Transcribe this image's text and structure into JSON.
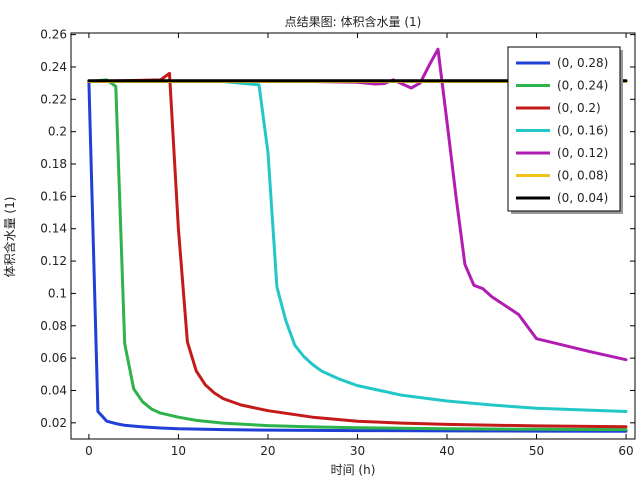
{
  "chart_data": {
    "type": "line",
    "title": "点结果图: 体积含水量 (1)",
    "xlabel": "时间 (h)",
    "ylabel": "体积含水量 (1)",
    "xlim": [
      -2,
      61
    ],
    "ylim": [
      0.01,
      0.261
    ],
    "xticks": [
      0,
      10,
      20,
      30,
      40,
      50,
      60
    ],
    "yticks": [
      0.02,
      0.04,
      0.06,
      0.08,
      0.1,
      0.12,
      0.14,
      0.16,
      0.18,
      0.2,
      0.22,
      0.24,
      0.26
    ],
    "ytick_labels": [
      "0.02",
      "0.04",
      "0.06",
      "0.08",
      "0.1",
      "0.12",
      "0.14",
      "0.16",
      "0.18",
      "0.2",
      "0.22",
      "0.24",
      "0.26"
    ],
    "grid": false,
    "legend_position": "top-right",
    "series": [
      {
        "name": "(0, 0.28)",
        "color": "#1f3fd6",
        "points": [
          [
            0,
            0.231
          ],
          [
            1,
            0.027
          ],
          [
            2,
            0.021
          ],
          [
            3,
            0.0195
          ],
          [
            4,
            0.0185
          ],
          [
            6,
            0.0175
          ],
          [
            8,
            0.0168
          ],
          [
            10,
            0.0163
          ],
          [
            15,
            0.0158
          ],
          [
            20,
            0.0155
          ],
          [
            30,
            0.0152
          ],
          [
            40,
            0.015
          ],
          [
            50,
            0.0149
          ],
          [
            60,
            0.0148
          ]
        ]
      },
      {
        "name": "(0, 0.24)",
        "color": "#2db34a",
        "points": [
          [
            0,
            0.231
          ],
          [
            2,
            0.232
          ],
          [
            3,
            0.228
          ],
          [
            4,
            0.069
          ],
          [
            5,
            0.041
          ],
          [
            6,
            0.033
          ],
          [
            7,
            0.0285
          ],
          [
            8,
            0.026
          ],
          [
            10,
            0.0235
          ],
          [
            12,
            0.0215
          ],
          [
            15,
            0.0198
          ],
          [
            20,
            0.0183
          ],
          [
            25,
            0.0175
          ],
          [
            30,
            0.017
          ],
          [
            40,
            0.0163
          ],
          [
            50,
            0.016
          ],
          [
            60,
            0.0158
          ]
        ]
      },
      {
        "name": "(0, 0.2)",
        "color": "#c41a1a",
        "points": [
          [
            0,
            0.231
          ],
          [
            8,
            0.232
          ],
          [
            9,
            0.236
          ],
          [
            10,
            0.14
          ],
          [
            11,
            0.07
          ],
          [
            12,
            0.052
          ],
          [
            13,
            0.0435
          ],
          [
            14,
            0.0385
          ],
          [
            15,
            0.035
          ],
          [
            17,
            0.031
          ],
          [
            20,
            0.0275
          ],
          [
            25,
            0.0235
          ],
          [
            30,
            0.021
          ],
          [
            35,
            0.0198
          ],
          [
            40,
            0.019
          ],
          [
            50,
            0.0181
          ],
          [
            60,
            0.0176
          ]
        ]
      },
      {
        "name": "(0, 0.16)",
        "color": "#23c7c7",
        "points": [
          [
            0,
            0.231
          ],
          [
            15,
            0.231
          ],
          [
            19,
            0.229
          ],
          [
            20,
            0.187
          ],
          [
            21,
            0.104
          ],
          [
            22,
            0.083
          ],
          [
            23,
            0.068
          ],
          [
            24,
            0.061
          ],
          [
            25,
            0.056
          ],
          [
            26,
            0.052
          ],
          [
            28,
            0.047
          ],
          [
            30,
            0.043
          ],
          [
            35,
            0.037
          ],
          [
            40,
            0.0335
          ],
          [
            45,
            0.031
          ],
          [
            50,
            0.029
          ],
          [
            55,
            0.028
          ],
          [
            60,
            0.027
          ]
        ]
      },
      {
        "name": "(0, 0.12)",
        "color": "#b21cb2",
        "points": [
          [
            0,
            0.231
          ],
          [
            25,
            0.231
          ],
          [
            30,
            0.2305
          ],
          [
            32,
            0.2295
          ],
          [
            33,
            0.2298
          ],
          [
            34,
            0.232
          ],
          [
            36,
            0.227
          ],
          [
            37,
            0.23
          ],
          [
            38,
            0.241
          ],
          [
            39,
            0.251
          ],
          [
            40,
            0.206
          ],
          [
            41,
            0.16
          ],
          [
            42,
            0.118
          ],
          [
            43,
            0.105
          ],
          [
            44,
            0.103
          ],
          [
            45,
            0.098
          ],
          [
            48,
            0.087
          ],
          [
            50,
            0.072
          ],
          [
            53,
            0.068
          ],
          [
            56,
            0.064
          ],
          [
            60,
            0.059
          ]
        ]
      },
      {
        "name": "(0, 0.08)",
        "color": "#f2c21a",
        "points": [
          [
            0,
            0.231
          ],
          [
            60,
            0.231
          ]
        ]
      },
      {
        "name": "(0, 0.04)",
        "color": "#000000",
        "points": [
          [
            0,
            0.2315
          ],
          [
            60,
            0.2315
          ]
        ]
      }
    ]
  }
}
